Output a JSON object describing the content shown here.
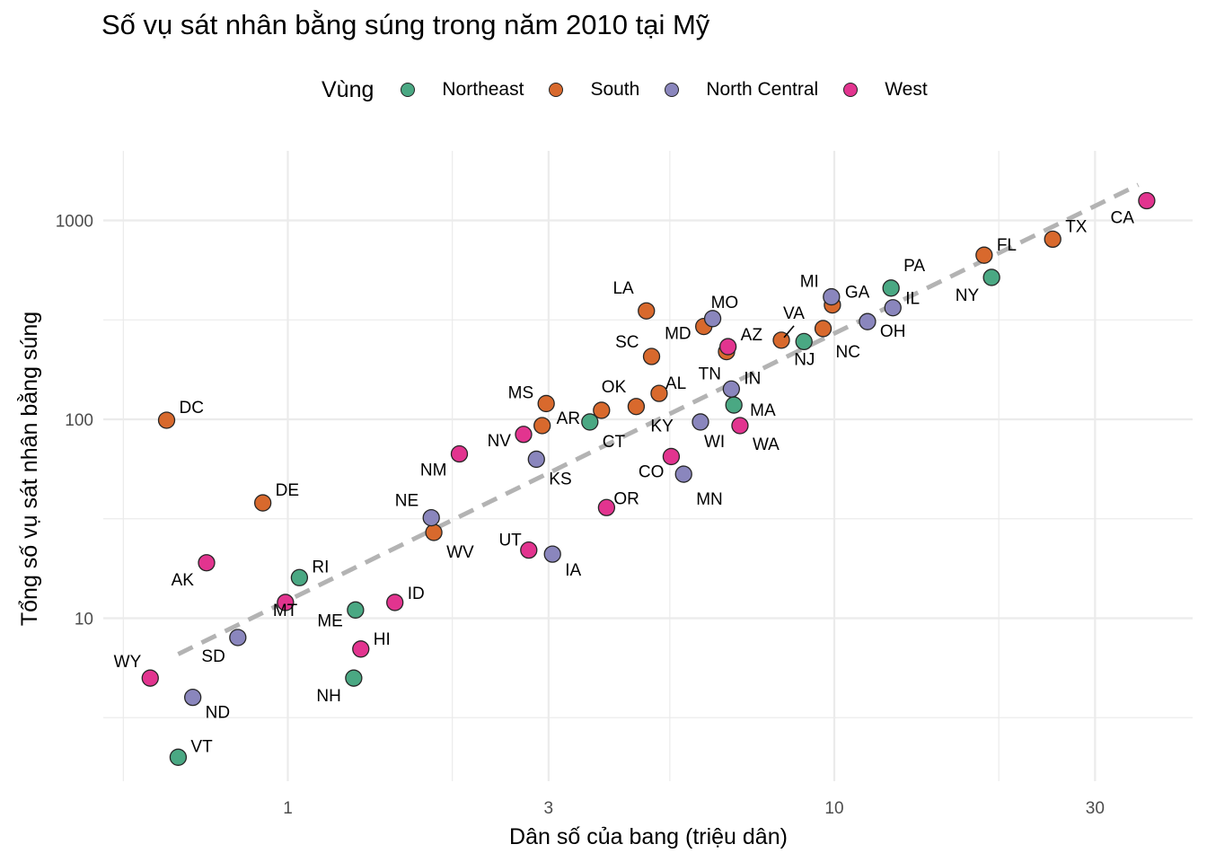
{
  "chart_data": {
    "type": "scatter",
    "title": "Số vụ sát nhân bằng súng trong năm 2010 tại Mỹ",
    "xlabel": "Dân số của bang (triệu dân)",
    "ylabel": "Tổng số vụ sát nhân bằng súng",
    "x_scale": "log",
    "y_scale": "log",
    "xlim": [
      0.38,
      40
    ],
    "ylim": [
      1.6,
      2400
    ],
    "x_ticks": [
      "1",
      "3",
      "10",
      "30"
    ],
    "y_ticks": [
      "10",
      "100",
      "1000"
    ],
    "grid": true,
    "legend": {
      "title": "Vùng",
      "position": "top",
      "entries": [
        {
          "name": "Northeast",
          "color": "#4aa883"
        },
        {
          "name": "South",
          "color": "#d8692d"
        },
        {
          "name": "North Central",
          "color": "#8a86bd"
        },
        {
          "name": "West",
          "color": "#e2348f"
        }
      ]
    },
    "trend_line": {
      "style": "dashed",
      "color": "#b3b3b3",
      "from": [
        0.63,
        6.6
      ],
      "to": [
        36,
        1510
      ]
    },
    "series": [
      {
        "name": "Northeast",
        "points": [
          {
            "label": "PA",
            "x": 12.7,
            "y": 457
          },
          {
            "label": "NY",
            "x": 19.4,
            "y": 517
          },
          {
            "label": "NJ",
            "x": 8.8,
            "y": 246
          },
          {
            "label": "MA",
            "x": 6.55,
            "y": 118
          },
          {
            "label": "CT",
            "x": 3.57,
            "y": 97
          },
          {
            "label": "RI",
            "x": 1.05,
            "y": 16
          },
          {
            "label": "ME",
            "x": 1.33,
            "y": 11
          },
          {
            "label": "NH",
            "x": 1.32,
            "y": 5
          },
          {
            "label": "VT",
            "x": 0.63,
            "y": 2
          }
        ]
      },
      {
        "name": "South",
        "points": [
          {
            "label": "TX",
            "x": 25.1,
            "y": 805
          },
          {
            "label": "FL",
            "x": 18.8,
            "y": 669
          },
          {
            "label": "GA",
            "x": 9.92,
            "y": 376
          },
          {
            "label": "NC",
            "x": 9.54,
            "y": 286
          },
          {
            "label": "VA",
            "x": 8.0,
            "y": 250
          },
          {
            "label": "LA",
            "x": 4.53,
            "y": 351
          },
          {
            "label": "MD",
            "x": 5.77,
            "y": 293
          },
          {
            "label": "TN",
            "x": 6.35,
            "y": 219
          },
          {
            "label": "SC",
            "x": 4.63,
            "y": 207
          },
          {
            "label": "AL",
            "x": 4.78,
            "y": 135
          },
          {
            "label": "KY",
            "x": 4.34,
            "y": 116
          },
          {
            "label": "OK",
            "x": 3.75,
            "y": 111
          },
          {
            "label": "MS",
            "x": 2.97,
            "y": 120
          },
          {
            "label": "AR",
            "x": 2.92,
            "y": 93
          },
          {
            "label": "WV",
            "x": 1.85,
            "y": 27
          },
          {
            "label": "DE",
            "x": 0.9,
            "y": 38
          },
          {
            "label": "DC",
            "x": 0.6,
            "y": 99
          }
        ]
      },
      {
        "name": "North Central",
        "points": [
          {
            "label": "MI",
            "x": 9.88,
            "y": 413
          },
          {
            "label": "IL",
            "x": 12.8,
            "y": 364
          },
          {
            "label": "OH",
            "x": 11.5,
            "y": 310
          },
          {
            "label": "MO",
            "x": 5.99,
            "y": 321
          },
          {
            "label": "IN",
            "x": 6.48,
            "y": 142
          },
          {
            "label": "WI",
            "x": 5.69,
            "y": 97
          },
          {
            "label": "MN",
            "x": 5.3,
            "y": 53
          },
          {
            "label": "KS",
            "x": 2.85,
            "y": 63
          },
          {
            "label": "IA",
            "x": 3.05,
            "y": 21
          },
          {
            "label": "NE",
            "x": 1.83,
            "y": 32
          },
          {
            "label": "SD",
            "x": 0.81,
            "y": 8
          },
          {
            "label": "ND",
            "x": 0.67,
            "y": 4
          }
        ]
      },
      {
        "name": "West",
        "points": [
          {
            "label": "CA",
            "x": 37.3,
            "y": 1257
          },
          {
            "label": "AZ",
            "x": 6.39,
            "y": 232
          },
          {
            "label": "WA",
            "x": 6.72,
            "y": 93
          },
          {
            "label": "CO",
            "x": 5.03,
            "y": 65
          },
          {
            "label": "OR",
            "x": 3.83,
            "y": 36
          },
          {
            "label": "NV",
            "x": 2.7,
            "y": 84
          },
          {
            "label": "NM",
            "x": 2.06,
            "y": 67
          },
          {
            "label": "UT",
            "x": 2.76,
            "y": 22
          },
          {
            "label": "ID",
            "x": 1.57,
            "y": 12
          },
          {
            "label": "HI",
            "x": 1.36,
            "y": 7
          },
          {
            "label": "MT",
            "x": 0.99,
            "y": 12
          },
          {
            "label": "AK",
            "x": 0.71,
            "y": 19
          },
          {
            "label": "WY",
            "x": 0.56,
            "y": 5
          }
        ]
      }
    ]
  }
}
